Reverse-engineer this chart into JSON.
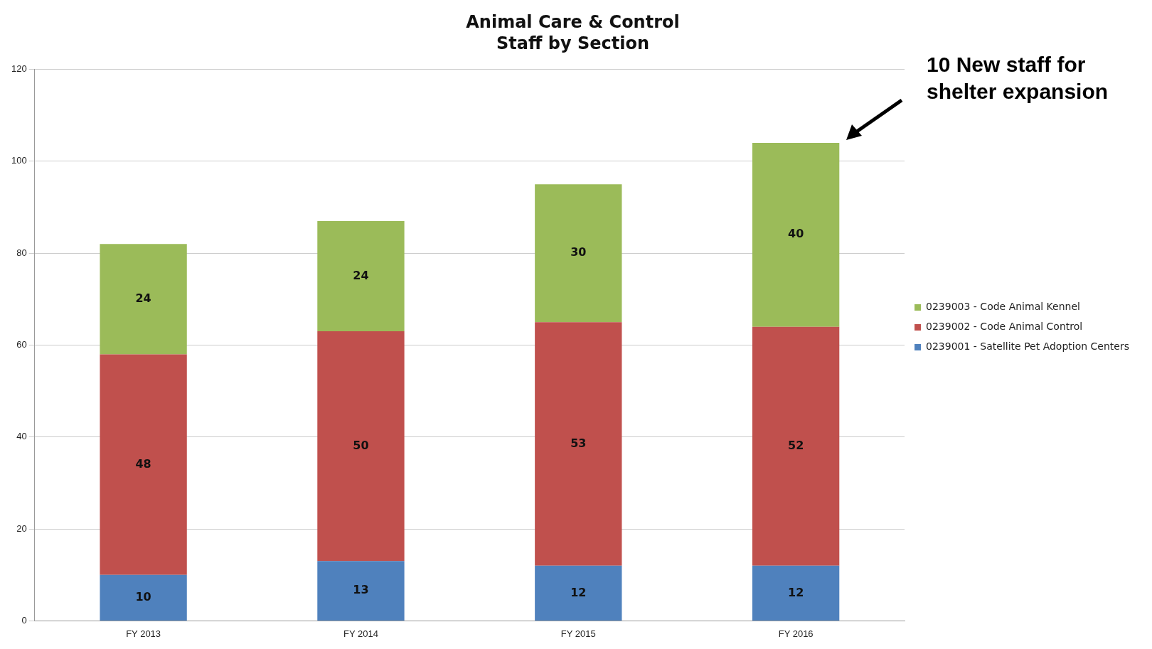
{
  "chart_data": {
    "type": "bar",
    "title": "Animal Care & Control",
    "subtitle": "Staff by Section",
    "categories": [
      "FY 2013",
      "FY 2014",
      "FY 2015",
      "FY 2016"
    ],
    "series": [
      {
        "name": "0239001 - Satellite Pet Adoption Centers",
        "color": "#4f81bd",
        "values": [
          10,
          13,
          12,
          12
        ]
      },
      {
        "name": "0239002 - Code Animal Control",
        "color": "#c0504d",
        "values": [
          48,
          50,
          53,
          52
        ]
      },
      {
        "name": "0239003 - Code Animal Kennel",
        "color": "#9bbb59",
        "values": [
          24,
          24,
          30,
          40
        ]
      }
    ],
    "stacked": true,
    "ylim": [
      0,
      120
    ],
    "yticks": [
      0,
      20,
      40,
      60,
      80,
      100,
      120
    ],
    "grid": "y",
    "legend": "right",
    "data_labels": true,
    "annotations": [
      "10 New staff for shelter expansion"
    ]
  }
}
